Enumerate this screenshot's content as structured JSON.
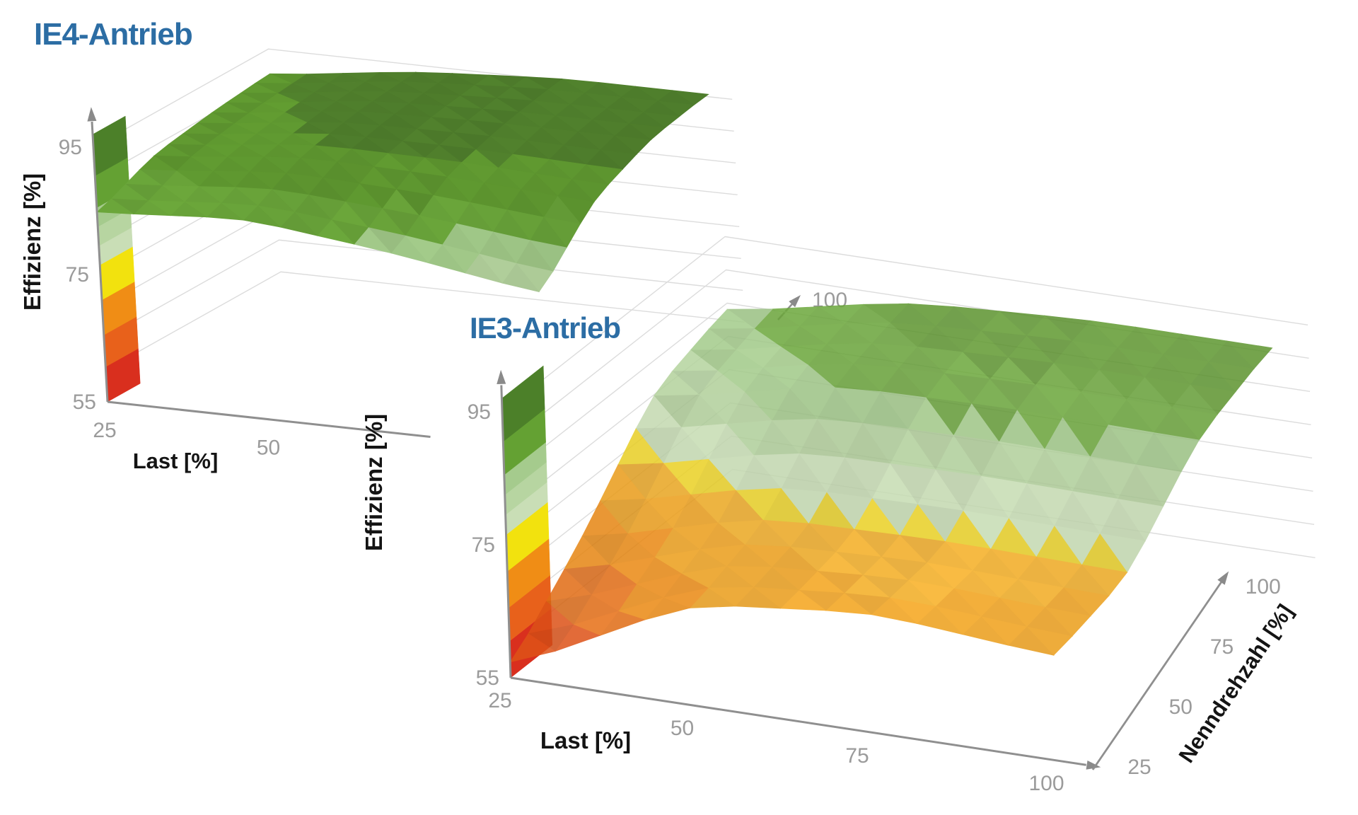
{
  "figure": {
    "background": "#ffffff",
    "title_color": "#2c6da4",
    "axis_color": "#8f8f8f",
    "arrow_color": "#8a8a8a",
    "tick_color": "#9b9b9b",
    "grid_color": "#dcdcdc",
    "label_color": "#141414"
  },
  "chart_data": [
    {
      "id": "ie4",
      "type": "surface",
      "title": "IE4-Antrieb",
      "x_label": "Last [%]",
      "y_label": null,
      "z_label": "Effizienz [%]",
      "x": [
        25,
        50,
        75,
        100
      ],
      "y": [
        25,
        50,
        75,
        100
      ],
      "z": [
        [
          84.5,
          86.0,
          83.0,
          79.0
        ],
        [
          88.5,
          91.0,
          90.5,
          89.0
        ],
        [
          90.0,
          93.0,
          93.5,
          93.5
        ],
        [
          91.0,
          94.0,
          95.5,
          95.5
        ]
      ],
      "zlim": [
        55,
        97
      ],
      "z_ticks": [
        55,
        75,
        95
      ],
      "visible_x_ticks": [
        25,
        50
      ],
      "visible_y_ticks": [
        100
      ],
      "grid_levels": [
        60,
        65,
        70,
        75,
        80,
        85,
        90,
        95
      ]
    },
    {
      "id": "ie3",
      "type": "surface",
      "title": "IE3-Antrieb",
      "x_label": "Last [%]",
      "y_label": "Nenndrehzahl [%]",
      "z_label": "Effizienz [%]",
      "x": [
        25,
        50,
        75,
        100
      ],
      "y": [
        25,
        50,
        75,
        100
      ],
      "z": [
        [
          56.0,
          70.0,
          73.0,
          70.5
        ],
        [
          67.0,
          74.0,
          74.5,
          74.0
        ],
        [
          80.0,
          86.0,
          86.5,
          86.0
        ],
        [
          84.0,
          89.5,
          91.0,
          91.0
        ]
      ],
      "zlim": [
        55,
        97
      ],
      "z_ticks": [
        55,
        75,
        95
      ],
      "visible_x_ticks": [
        25,
        50,
        75,
        100
      ],
      "visible_y_ticks": [
        25,
        50,
        75,
        100
      ],
      "grid_levels": [
        60,
        65,
        70,
        75,
        80,
        85,
        90,
        95
      ]
    }
  ],
  "colormap": [
    [
      55,
      "#d93a1f"
    ],
    [
      58,
      "#e25418"
    ],
    [
      62,
      "#e76f15"
    ],
    [
      66,
      "#ec8a12"
    ],
    [
      69.5,
      "#efa01a"
    ],
    [
      73,
      "#f1ab22"
    ],
    [
      74.8,
      "#eed425"
    ],
    [
      76,
      "#c9dfb5"
    ],
    [
      79.5,
      "#b4d39d"
    ],
    [
      82.5,
      "#a2ca89"
    ],
    [
      85,
      "#6aa53a"
    ],
    [
      88,
      "#5f9830"
    ],
    [
      91.5,
      "#4f7e2c"
    ]
  ],
  "colorbar_bands": [
    [
      55,
      60.5,
      "#d92f1e"
    ],
    [
      60.5,
      65.5,
      "#e8611b"
    ],
    [
      65.5,
      71,
      "#f08d15"
    ],
    [
      71,
      76.5,
      "#f2e20e"
    ],
    [
      76.5,
      79.5,
      "#c9deb6"
    ],
    [
      79.5,
      82.5,
      "#b7d5a1"
    ],
    [
      82.5,
      85.5,
      "#a5cb8d"
    ],
    [
      85.5,
      90.5,
      "#64a133"
    ],
    [
      90.5,
      97,
      "#4c8029"
    ]
  ]
}
